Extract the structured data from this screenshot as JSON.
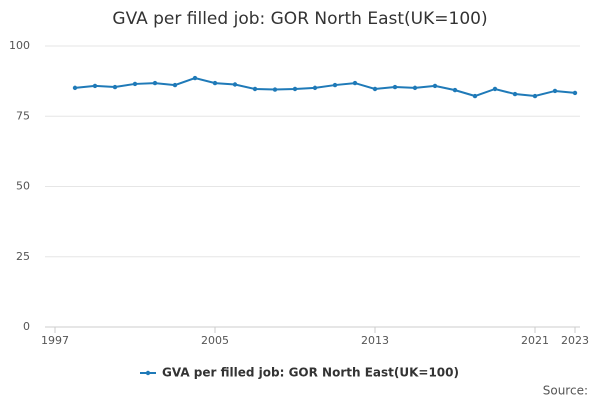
{
  "chart_data": {
    "type": "line",
    "title": "GVA per filled job: GOR North East(UK=100)",
    "x": [
      1998,
      1999,
      2000,
      2001,
      2002,
      2003,
      2004,
      2005,
      2006,
      2007,
      2008,
      2009,
      2010,
      2011,
      2012,
      2013,
      2014,
      2015,
      2016,
      2017,
      2018,
      2019,
      2020,
      2021,
      2022,
      2023
    ],
    "series": [
      {
        "name": "GVA per filled job: GOR North East(UK=100)",
        "color": "#1f7ab8",
        "values": [
          85.1,
          85.8,
          85.4,
          86.5,
          86.8,
          86.1,
          88.6,
          86.8,
          86.3,
          84.7,
          84.5,
          84.7,
          85.1,
          86.1,
          86.8,
          84.7,
          85.4,
          85.1,
          85.8,
          84.3,
          82.2,
          84.7,
          82.9,
          82.2,
          84.0,
          83.3
        ]
      }
    ],
    "xlim": [
      1996.5,
      2023.25
    ],
    "xticks": [
      1997,
      2005,
      2013,
      2021,
      2023
    ],
    "ylim": [
      0,
      100
    ],
    "yticks": [
      0,
      25,
      50,
      75,
      100
    ],
    "grid": true,
    "source": "Source:"
  }
}
